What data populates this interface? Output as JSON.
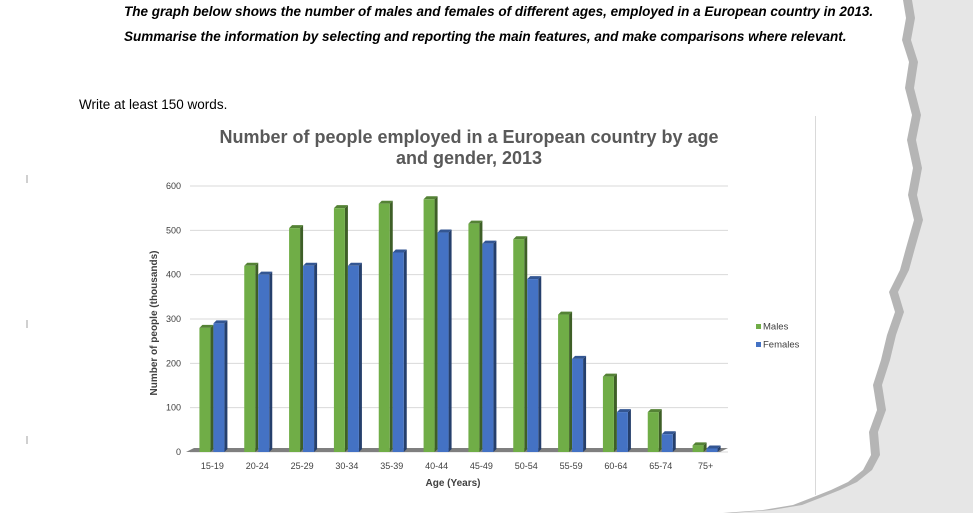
{
  "task": {
    "paragraph_1": "The graph below shows the number of males and females of different ages, employed in a European country in 2013.",
    "paragraph_2": "Summarise the information by selecting and reporting the main features, and make comparisons where relevant.",
    "word_count": "Write at least 150 words."
  },
  "chart_data": {
    "type": "bar",
    "title": "Number of people employed in a European country by age and gender, 2013",
    "title_lines": [
      "Number of people employed in a European country by age",
      "and gender, 2013"
    ],
    "xlabel": "Age (Years)",
    "ylabel": "Number of people (thousands)",
    "categories": [
      "15-19",
      "20-24",
      "25-29",
      "30-34",
      "35-39",
      "40-44",
      "45-49",
      "50-54",
      "55-59",
      "60-64",
      "65-74",
      "75+"
    ],
    "series": [
      {
        "name": "Males",
        "color": "#70ad47",
        "values": [
          280,
          420,
          505,
          550,
          560,
          570,
          515,
          480,
          310,
          170,
          90,
          15
        ]
      },
      {
        "name": "Females",
        "color": "#4472c4",
        "values": [
          290,
          400,
          420,
          420,
          450,
          495,
          470,
          390,
          210,
          90,
          40,
          8
        ]
      }
    ],
    "yticks": [
      0,
      100,
      200,
      300,
      400,
      500,
      600
    ],
    "ylim": [
      0,
      600
    ],
    "grid": true,
    "legend": "right"
  }
}
